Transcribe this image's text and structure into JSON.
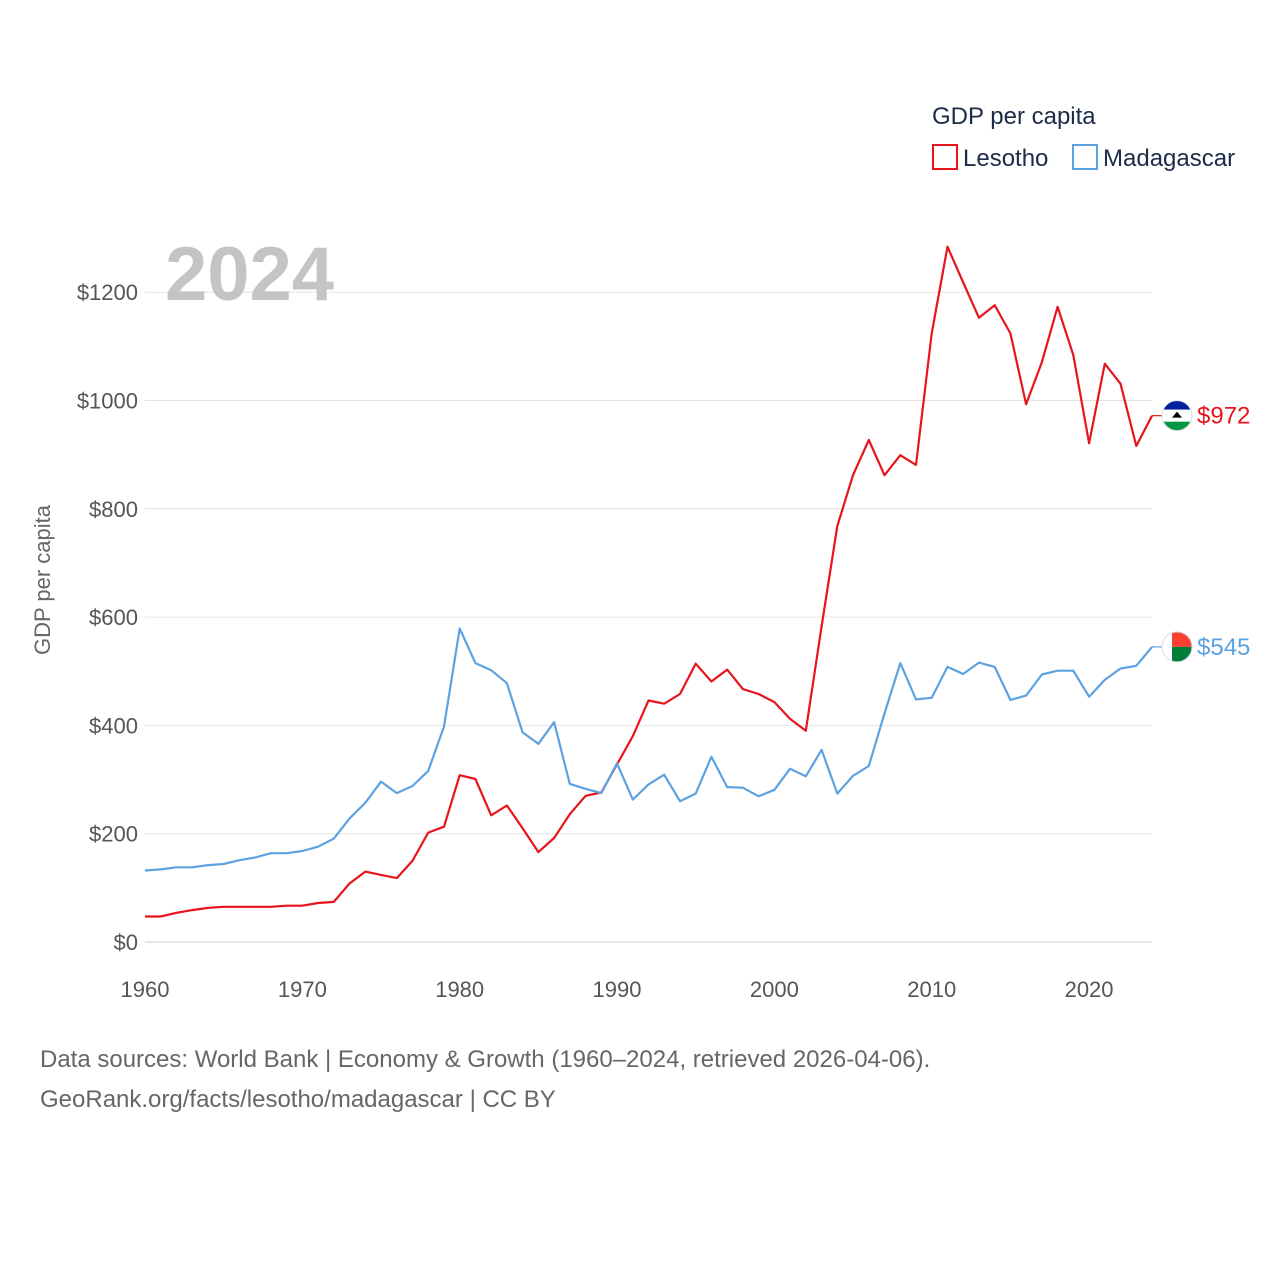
{
  "chart_data": {
    "type": "line",
    "title": "GDP per capita",
    "year_overlay": "2024",
    "ylabel": "GDP per capita",
    "xlabel": "",
    "xlim": [
      1960,
      2024
    ],
    "ylim": [
      0,
      1300
    ],
    "x_ticks": [
      {
        "value": 1960,
        "label": "1960"
      },
      {
        "value": 1970,
        "label": "1970"
      },
      {
        "value": 1980,
        "label": "1980"
      },
      {
        "value": 1990,
        "label": "1990"
      },
      {
        "value": 2000,
        "label": "2000"
      },
      {
        "value": 2010,
        "label": "2010"
      },
      {
        "value": 2020,
        "label": "2020"
      }
    ],
    "y_ticks": [
      {
        "value": 0,
        "label": "$0"
      },
      {
        "value": 200,
        "label": "$200"
      },
      {
        "value": 400,
        "label": "$400"
      },
      {
        "value": 600,
        "label": "$600"
      },
      {
        "value": 800,
        "label": "$800"
      },
      {
        "value": 1000,
        "label": "$1000"
      },
      {
        "value": 1200,
        "label": "$1200"
      }
    ],
    "grid": true,
    "legend": "top-right",
    "series": [
      {
        "name": "Lesotho",
        "color": "#e8141c",
        "end_label": "$972",
        "flag_icon": "lesotho-flag-icon",
        "x_start": 1960,
        "values": [
          47,
          47,
          54,
          59,
          63,
          65,
          65,
          65,
          65,
          67,
          67,
          72,
          74,
          108,
          130,
          124,
          118,
          150,
          202,
          213,
          308,
          301,
          234,
          252,
          210,
          166,
          192,
          236,
          270,
          276,
          328,
          380,
          446,
          440,
          458,
          514,
          481,
          503,
          467,
          458,
          443,
          412,
          390,
          583,
          768,
          862,
          927,
          862,
          899,
          881,
          1124,
          1284,
          1218,
          1153,
          1176,
          1124,
          993,
          1071,
          1173,
          1084,
          921,
          1068,
          1031,
          916,
          972
        ]
      },
      {
        "name": "Madagascar",
        "color": "#5da2e0",
        "end_label": "$545",
        "flag_icon": "madagascar-flag-icon",
        "x_start": 1960,
        "values": [
          132,
          134,
          138,
          138,
          142,
          144,
          151,
          156,
          164,
          164,
          168,
          176,
          191,
          228,
          257,
          296,
          275,
          288,
          316,
          398,
          579,
          515,
          502,
          478,
          387,
          366,
          406,
          292,
          283,
          275,
          330,
          263,
          291,
          309,
          260,
          274,
          342,
          286,
          285,
          269,
          281,
          320,
          306,
          355,
          274,
          307,
          325,
          422,
          515,
          448,
          451,
          508,
          495,
          516,
          508,
          447,
          455,
          494,
          501,
          501,
          453,
          484,
          505,
          510,
          545
        ]
      }
    ]
  },
  "source": {
    "line1": "Data sources: World Bank | Economy & Growth (1960–2024, retrieved 2026-04-06).",
    "line2": "GeoRank.org/facts/lesotho/madagascar | CC BY"
  }
}
